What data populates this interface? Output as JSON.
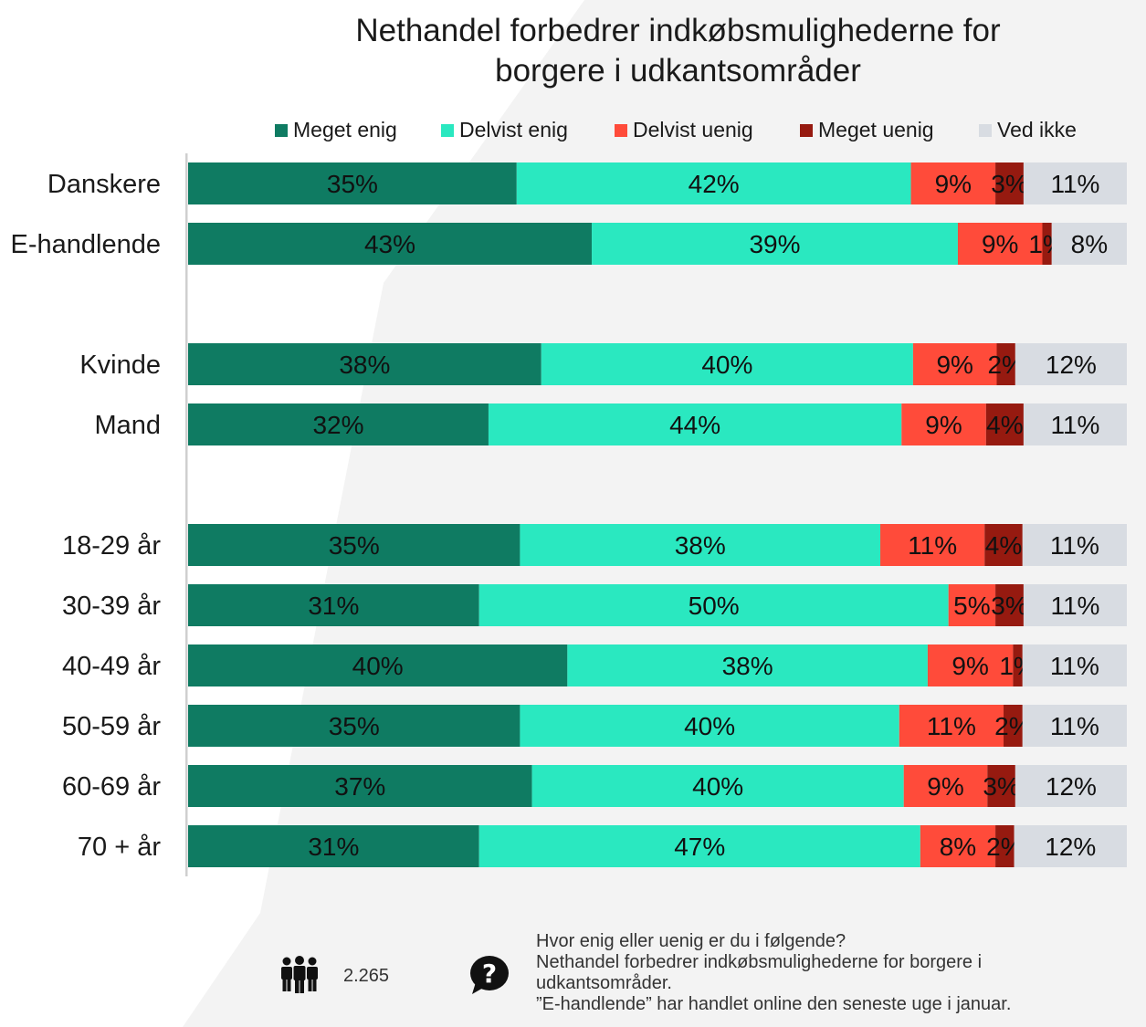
{
  "chart_data": {
    "type": "bar",
    "orientation": "horizontal-stacked-100",
    "title_lines": [
      "Nethandel forbedrer indkøbsmulighederne for",
      "borgere i udkantsområder"
    ],
    "series": [
      {
        "name": "Meget enig",
        "color": "#0f7b62"
      },
      {
        "name": "Delvist enig",
        "color": "#2ae8c0"
      },
      {
        "name": "Delvist uenig",
        "color": "#ff4b3a"
      },
      {
        "name": "Meget uenig",
        "color": "#961a10"
      },
      {
        "name": "Ved ikke",
        "color": "#d8dce2"
      }
    ],
    "groups": [
      {
        "rows": [
          {
            "label": "Danskere",
            "values": [
              35,
              42,
              9,
              3,
              11
            ]
          },
          {
            "label": "E-handlende",
            "values": [
              43,
              39,
              9,
              1,
              8
            ]
          }
        ]
      },
      {
        "rows": [
          {
            "label": "Kvinde",
            "values": [
              38,
              40,
              9,
              2,
              12
            ]
          },
          {
            "label": "Mand",
            "values": [
              32,
              44,
              9,
              4,
              11
            ]
          }
        ]
      },
      {
        "rows": [
          {
            "label": "18-29 år",
            "values": [
              35,
              38,
              11,
              4,
              11
            ]
          },
          {
            "label": "30-39 år",
            "values": [
              31,
              50,
              5,
              3,
              11
            ]
          },
          {
            "label": "40-49 år",
            "values": [
              40,
              38,
              9,
              1,
              11
            ]
          },
          {
            "label": "50-59 år",
            "values": [
              35,
              40,
              11,
              2,
              11
            ]
          },
          {
            "label": "60-69 år",
            "values": [
              37,
              40,
              9,
              3,
              12
            ]
          },
          {
            "label": "70 + år",
            "values": [
              31,
              47,
              8,
              2,
              12
            ]
          }
        ]
      }
    ],
    "value_suffix": "%",
    "xlim": [
      0,
      100
    ],
    "grid": false,
    "legend_position": "top"
  },
  "footer": {
    "respondents": "2.265",
    "people_icon": "people-icon",
    "question_icon": "question-bubble-icon",
    "question_lines": [
      "Hvor enig eller uenig er du i følgende?",
      "Nethandel forbedrer indkøbsmulighederne for borgere i",
      "udkantsområder.",
      "”E-handlende” har handlet online den seneste uge i januar."
    ]
  }
}
